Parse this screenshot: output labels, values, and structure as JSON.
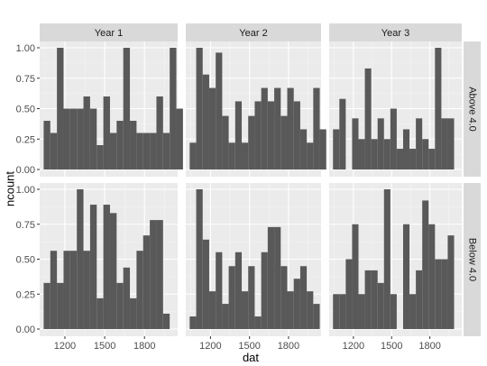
{
  "chart_data": {
    "type": "bar",
    "geom": "histogram",
    "xlabel": "dat",
    "ylabel": "ncount",
    "x_ticks": [
      1200,
      1500,
      1800
    ],
    "y_ticks": [
      "0.00",
      "0.25",
      "0.50",
      "0.75",
      "1.00"
    ],
    "xlim": [
      1010,
      2050
    ],
    "ylim": [
      0,
      1
    ],
    "bin_start": 1040,
    "bin_width": 50,
    "col_facets": [
      "Year 1",
      "Year 2",
      "Year 3"
    ],
    "row_facets": [
      "Above 4.0",
      "Below 4.0"
    ],
    "grid": true,
    "bar_color": "#595959",
    "panel_background": "#ebebeb",
    "panels": [
      {
        "col": "Year 1",
        "row": "Above 4.0",
        "values": [
          0.4,
          0.3,
          1.0,
          0.5,
          0.5,
          0.5,
          0.6,
          0.5,
          0.2,
          0.6,
          0.3,
          0.4,
          1.0,
          0.4,
          0.3,
          0.3,
          0.3,
          0.6,
          0.3,
          1.0,
          0.5
        ]
      },
      {
        "col": "Year 2",
        "row": "Above 4.0",
        "values": [
          0.22,
          1.0,
          0.78,
          0.67,
          0.96,
          0.44,
          0.22,
          0.56,
          0.22,
          0.44,
          0.56,
          0.67,
          0.56,
          0.67,
          0.44,
          0.67,
          0.56,
          0.33,
          0.22,
          0.67,
          0.33
        ]
      },
      {
        "col": "Year 3",
        "row": "Above 4.0",
        "values": [
          0.33,
          0.58,
          0.0,
          0.42,
          0.25,
          0.83,
          0.25,
          0.42,
          0.25,
          0.5,
          0.17,
          0.33,
          0.17,
          0.42,
          0.25,
          0.17,
          1.0,
          0.42,
          0.42
        ]
      },
      {
        "col": "Year 1",
        "row": "Below 4.0",
        "values": [
          0.33,
          0.56,
          0.33,
          0.56,
          0.56,
          1.0,
          0.56,
          0.89,
          0.22,
          0.89,
          0.83,
          0.33,
          0.44,
          0.22,
          0.56,
          0.67,
          0.78,
          0.78,
          0.11
        ]
      },
      {
        "col": "Year 2",
        "row": "Below 4.0",
        "values": [
          0.09,
          1.0,
          0.64,
          0.27,
          0.55,
          0.18,
          0.45,
          0.55,
          0.27,
          0.45,
          0.09,
          0.55,
          0.73,
          0.73,
          0.45,
          0.27,
          0.36,
          0.45,
          0.27,
          0.18
        ]
      },
      {
        "col": "Year 3",
        "row": "Below 4.0",
        "values": [
          0.25,
          0.25,
          0.5,
          0.75,
          0.25,
          0.42,
          0.42,
          0.33,
          1.0,
          0.25,
          0.0,
          0.75,
          0.25,
          0.42,
          0.92,
          0.75,
          0.5,
          0.5,
          0.67
        ]
      }
    ]
  }
}
